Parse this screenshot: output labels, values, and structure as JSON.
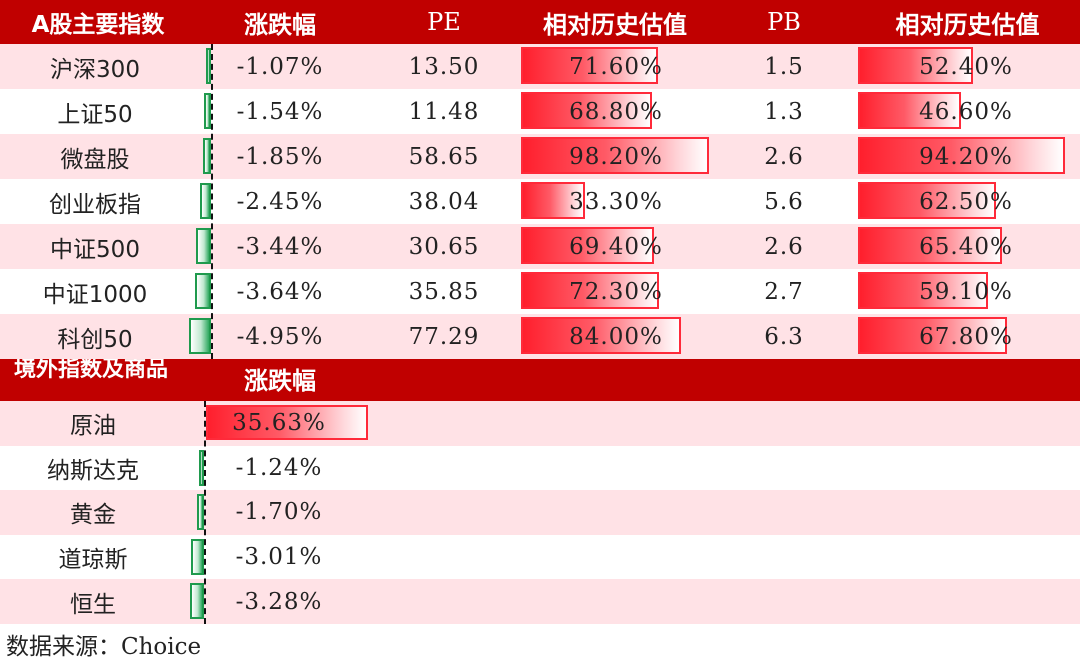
{
  "table1": {
    "headers": [
      "A股主要指数",
      "涨跌幅",
      "PE",
      "相对历史估值",
      "PB",
      "相对历史估值"
    ],
    "rows": [
      {
        "name": "沪深300",
        "chg": "-1.07%",
        "chg_value": -1.07,
        "pe": "13.50",
        "pe_pct": "71.60%",
        "pe_pct_value": 71.6,
        "pb": "1.5",
        "pb_pct": "52.40%",
        "pb_pct_value": 52.4
      },
      {
        "name": "上证50",
        "chg": "-1.54%",
        "chg_value": -1.54,
        "pe": "11.48",
        "pe_pct": "68.80%",
        "pe_pct_value": 68.8,
        "pb": "1.3",
        "pb_pct": "46.60%",
        "pb_pct_value": 46.6
      },
      {
        "name": "微盘股",
        "chg": "-1.85%",
        "chg_value": -1.85,
        "pe": "58.65",
        "pe_pct": "98.20%",
        "pe_pct_value": 98.2,
        "pb": "2.6",
        "pb_pct": "94.20%",
        "pb_pct_value": 94.2
      },
      {
        "name": "创业板指",
        "chg": "-2.45%",
        "chg_value": -2.45,
        "pe": "38.04",
        "pe_pct": "33.30%",
        "pe_pct_value": 33.3,
        "pb": "5.6",
        "pb_pct": "62.50%",
        "pb_pct_value": 62.5
      },
      {
        "name": "中证500",
        "chg": "-3.44%",
        "chg_value": -3.44,
        "pe": "30.65",
        "pe_pct": "69.40%",
        "pe_pct_value": 69.4,
        "pb": "2.6",
        "pb_pct": "65.40%",
        "pb_pct_value": 65.4
      },
      {
        "name": "中证1000",
        "chg": "-3.64%",
        "chg_value": -3.64,
        "pe": "35.85",
        "pe_pct": "72.30%",
        "pe_pct_value": 72.3,
        "pb": "2.7",
        "pb_pct": "59.10%",
        "pb_pct_value": 59.1
      },
      {
        "name": "科创50",
        "chg": "-4.95%",
        "chg_value": -4.95,
        "pe": "77.29",
        "pe_pct": "84.00%",
        "pe_pct_value": 84.0,
        "pb": "6.3",
        "pb_pct": "67.80%",
        "pb_pct_value": 67.8
      }
    ]
  },
  "table2": {
    "headers": [
      "境外指数及商品",
      "涨跌幅"
    ],
    "rows": [
      {
        "name": "原油",
        "chg": "35.63%",
        "chg_value": 35.63
      },
      {
        "name": "纳斯达克",
        "chg": "-1.24%",
        "chg_value": -1.24
      },
      {
        "name": "黄金",
        "chg": "-1.70%",
        "chg_value": -1.7
      },
      {
        "name": "道琼斯",
        "chg": "-3.01%",
        "chg_value": -3.01
      },
      {
        "name": "恒生",
        "chg": "-3.28%",
        "chg_value": -3.28
      }
    ]
  },
  "source": "数据来源：Choice",
  "colors": {
    "header": "#c00000",
    "stripe": "#ffe2e6",
    "positive": "#ff1f2d",
    "negative": "#2ea85f"
  }
}
